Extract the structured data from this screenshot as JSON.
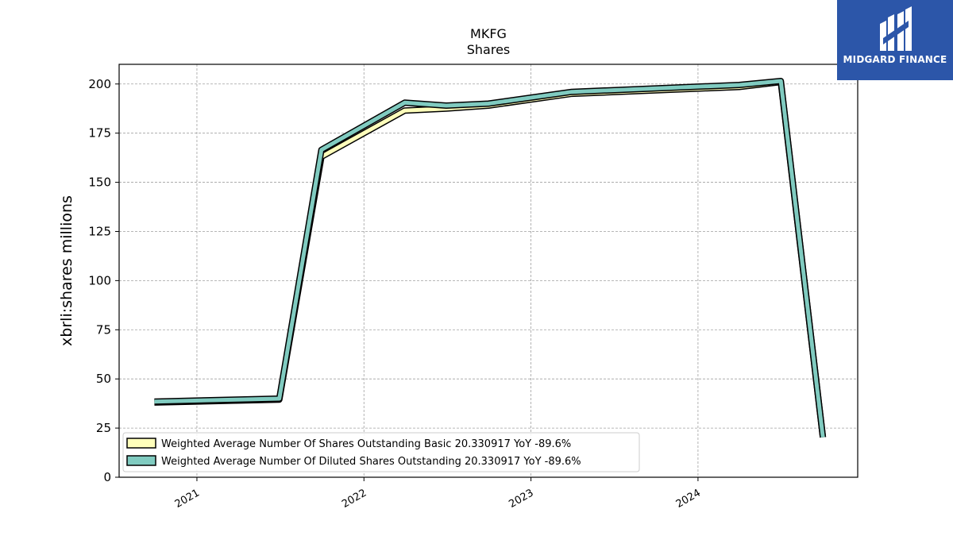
{
  "logo": {
    "text": "MIDGARD FINANCE",
    "background": "#2c56a9"
  },
  "chart_data": {
    "type": "line",
    "title": "MKFG",
    "subtitle": "Shares",
    "ylabel": "xbrli:shares millions",
    "xlabel": "",
    "ylim": [
      0,
      210
    ],
    "yticks": [
      0,
      25,
      50,
      75,
      100,
      125,
      150,
      175,
      200
    ],
    "xlim": [
      "2020-07-15",
      "2024-12-15"
    ],
    "xticks": [
      {
        "date": "2021-01-01",
        "label": "2021"
      },
      {
        "date": "2022-01-01",
        "label": "2022"
      },
      {
        "date": "2023-01-01",
        "label": "2023"
      },
      {
        "date": "2024-01-01",
        "label": "2024"
      }
    ],
    "grid": true,
    "legend_position": "lower-left",
    "series": [
      {
        "name": "Weighted Average Number Of Shares Outstanding Basic  20.330917 YoY -89.6%",
        "color": "#ffffbb",
        "points": [
          {
            "x": "2020-09-30",
            "y": 38.0
          },
          {
            "x": "2021-06-30",
            "y": 39.5
          },
          {
            "x": "2021-09-30",
            "y": 163.0
          },
          {
            "x": "2022-03-31",
            "y": 186.5
          },
          {
            "x": "2022-06-30",
            "y": 187.5
          },
          {
            "x": "2022-09-30",
            "y": 189.0
          },
          {
            "x": "2023-03-31",
            "y": 195.0
          },
          {
            "x": "2024-03-31",
            "y": 198.5
          },
          {
            "x": "2024-06-30",
            "y": 201.0
          },
          {
            "x": "2024-09-30",
            "y": 20.330917
          }
        ]
      },
      {
        "name": "Weighted Average Number Of Diluted Shares Outstanding  20.330917 YoY -89.6%",
        "color": "#80cbc0",
        "points": [
          {
            "x": "2020-09-30",
            "y": 38.5
          },
          {
            "x": "2021-06-30",
            "y": 40.0
          },
          {
            "x": "2021-09-30",
            "y": 166.5
          },
          {
            "x": "2022-03-31",
            "y": 190.5
          },
          {
            "x": "2022-06-30",
            "y": 189.0
          },
          {
            "x": "2022-09-30",
            "y": 190.0
          },
          {
            "x": "2023-03-31",
            "y": 196.0
          },
          {
            "x": "2024-03-31",
            "y": 199.5
          },
          {
            "x": "2024-06-30",
            "y": 201.5
          },
          {
            "x": "2024-09-30",
            "y": 20.330917
          }
        ]
      }
    ]
  }
}
